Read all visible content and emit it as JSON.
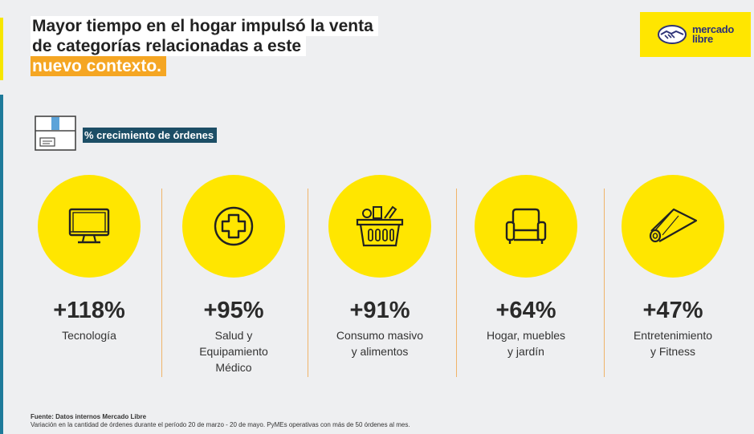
{
  "title": {
    "line1": "Mayor tiempo en el hogar impulsó la venta",
    "line2": "de categorías relacionadas a este",
    "line3": "nuevo contexto."
  },
  "logo": {
    "line1": "mercado",
    "line2": "libre",
    "icon": "handshake-icon"
  },
  "subtitle": "% crecimiento de órdenes",
  "categories": [
    {
      "value": "+118%",
      "label": "Tecnología",
      "icon": "computer-monitor-icon"
    },
    {
      "value": "+95%",
      "label": "Salud y\nEquipamiento\nMédico",
      "icon": "medical-cross-icon"
    },
    {
      "value": "+91%",
      "label": "Consumo masivo\ny alimentos",
      "icon": "grocery-basket-icon"
    },
    {
      "value": "+64%",
      "label": "Hogar, muebles\ny jardín",
      "icon": "armchair-icon"
    },
    {
      "value": "+47%",
      "label": "Entretenimiento\ny Fitness",
      "icon": "yoga-mat-icon"
    }
  ],
  "footer": {
    "source": "Fuente: Datos internos Mercado Libre",
    "note": "Variación en la cantidad de órdenes durante el período 20 de marzo - 20 de mayo. PyMEs operativas con más de 50 órdenes al mes."
  },
  "colors": {
    "yellow": "#ffe600",
    "orange": "#f5a623",
    "navy": "#1c4e66",
    "brand_blue": "#2d3277"
  }
}
